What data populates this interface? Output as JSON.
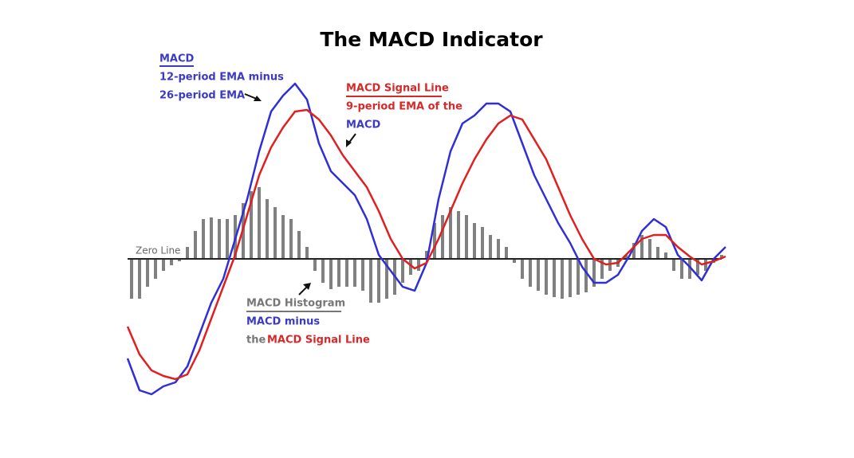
{
  "chart_data": {
    "type": "line",
    "title": "The MACD Indicator",
    "ylim": [
      -180,
      225
    ],
    "yticks": [
      {
        "value": 0,
        "label": "Zero Line"
      }
    ],
    "series": [
      {
        "name": "MACD",
        "color": "#2f2fd8",
        "values": [
          -125,
          -165,
          -170,
          -160,
          -155,
          -135,
          -95,
          -55,
          -25,
          25,
          75,
          135,
          185,
          205,
          220,
          200,
          145,
          110,
          95,
          80,
          50,
          5,
          -15,
          -35,
          -40,
          -5,
          75,
          135,
          170,
          180,
          195,
          195,
          185,
          145,
          105,
          75,
          45,
          20,
          -10,
          -30,
          -30,
          -20,
          5,
          35,
          50,
          40,
          5,
          -10,
          -27,
          0,
          15
        ]
      },
      {
        "name": "MACD Signal Line",
        "color": "#e02020",
        "values": [
          -85,
          -120,
          -140,
          -147,
          -151,
          -145,
          -115,
          -75,
          -35,
          5,
          55,
          105,
          140,
          165,
          185,
          187,
          175,
          155,
          130,
          110,
          90,
          60,
          25,
          0,
          -12,
          -5,
          25,
          60,
          95,
          125,
          150,
          170,
          180,
          175,
          150,
          125,
          90,
          55,
          25,
          0,
          -7,
          -5,
          10,
          25,
          30,
          30,
          15,
          3,
          -7,
          -3,
          3
        ]
      },
      {
        "name": "MACD Histogram",
        "type": "bar",
        "color": "#808080",
        "values": [
          -50,
          -50,
          -35,
          -25,
          -15,
          -8,
          -3,
          15,
          35,
          50,
          52,
          50,
          50,
          55,
          70,
          85,
          90,
          75,
          65,
          55,
          50,
          35,
          15,
          -15,
          -30,
          -38,
          -35,
          -35,
          -35,
          -40,
          -55,
          -55,
          -50,
          -45,
          -30,
          -20,
          -15,
          10,
          45,
          55,
          65,
          60,
          55,
          45,
          40,
          30,
          25,
          15,
          -5,
          -25,
          -35,
          -40,
          -45,
          -48,
          -50,
          -48,
          -45,
          -42,
          -35,
          -25,
          -15,
          -10,
          5,
          20,
          30,
          25,
          15,
          8,
          -15,
          -25,
          -25,
          -20,
          -15,
          -5,
          5
        ]
      }
    ],
    "annotations": {
      "macd": [
        "12-period EMA minus",
        "26-period EMA"
      ],
      "signal": [
        "9-period EMA of the",
        "MACD"
      ],
      "histogram": [
        "MACD minus",
        "the",
        "MACD Signal Line"
      ]
    }
  }
}
